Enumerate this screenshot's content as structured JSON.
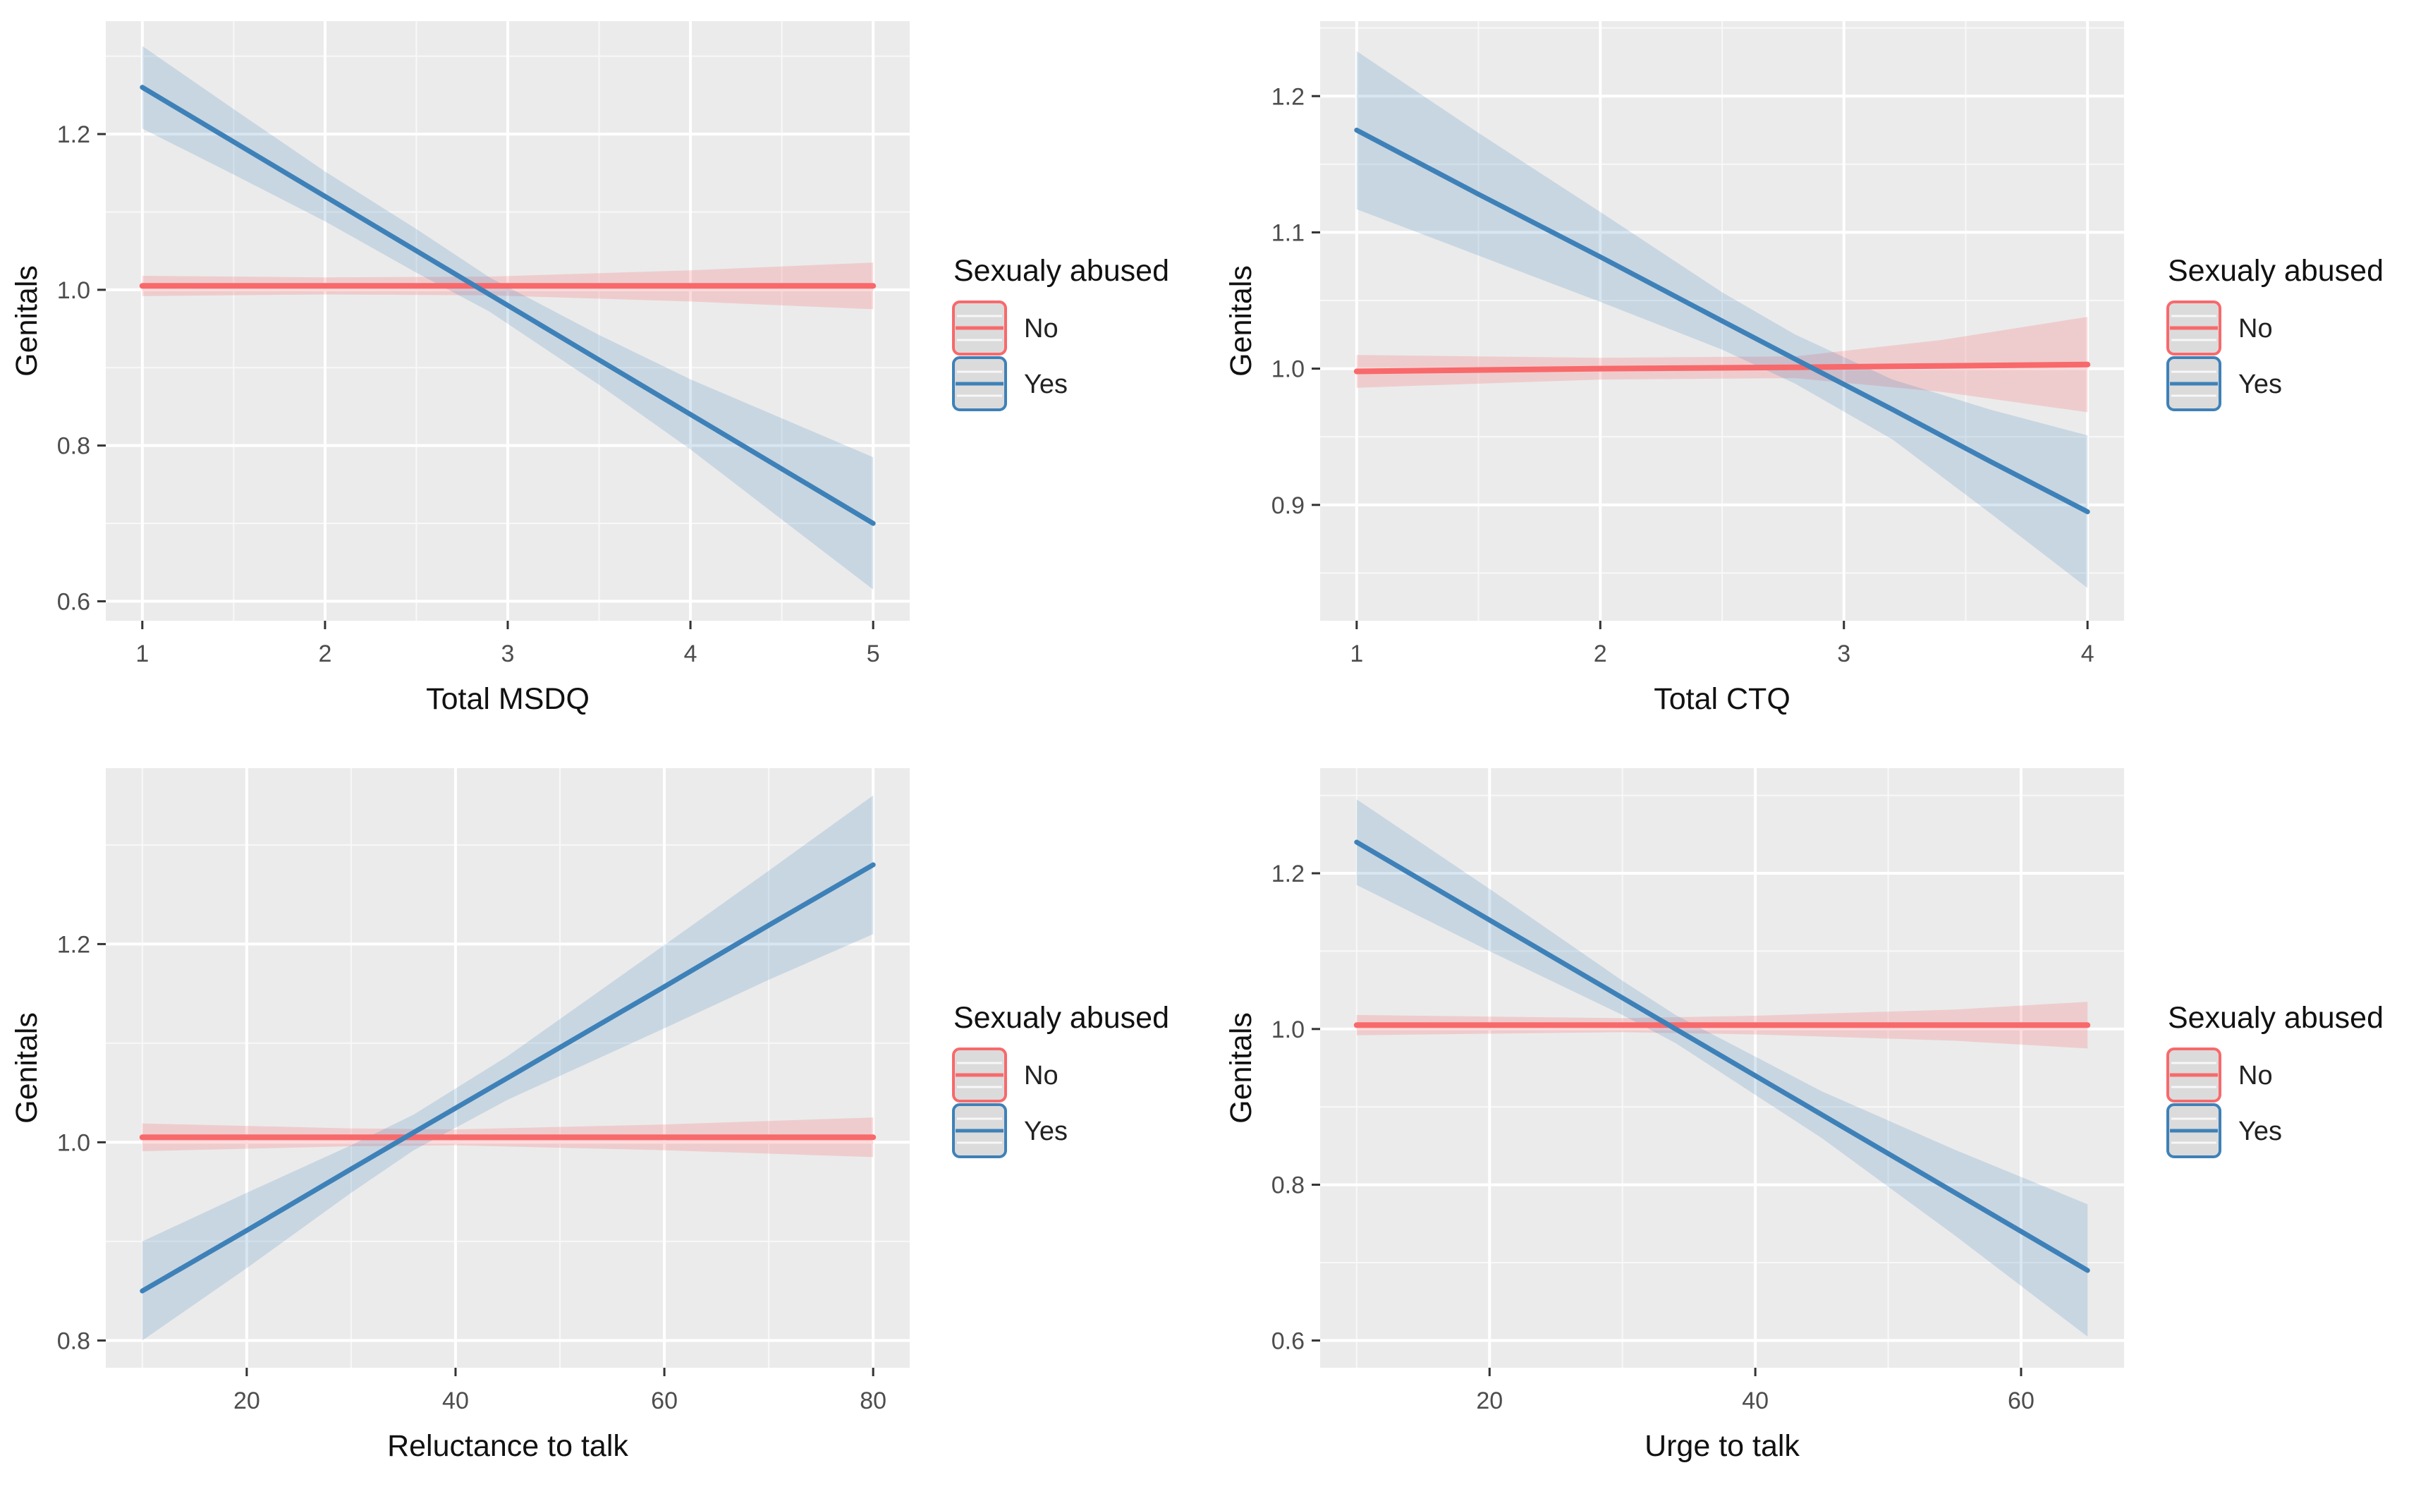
{
  "figure": {
    "background": "#ffffff",
    "description": "Four interaction-effect line plots of Genitals score vs questionnaire totals, split by sexual abuse status"
  },
  "style": {
    "panel_background": "#EBEBEB",
    "gridline_color": "#FFFFFF",
    "tick_mark_color": "#333333",
    "tick_text_color": "#4D4D4D",
    "axis_title_color": "#111111",
    "legend_title_color": "#111111",
    "legend_label_color": "#222222",
    "legend_key_fill": "#DBDBDB",
    "no_color": "#F8696B",
    "yes_color": "#3E81B8"
  },
  "legend": {
    "title": "Sexualy abused",
    "position": "right",
    "entries": [
      {
        "label": "No",
        "color": "#F8696B"
      },
      {
        "label": "Yes",
        "color": "#3E81B8"
      }
    ]
  },
  "chart_data": [
    {
      "type": "line",
      "title": "",
      "xlabel": "Total MSDQ",
      "ylabel": "Genitals",
      "xlim": [
        0.8,
        5.2
      ],
      "ylim": [
        0.575,
        1.345
      ],
      "grid": true,
      "x_ticks": {
        "major": [
          1,
          2,
          3,
          4,
          5
        ],
        "minor": [
          1.5,
          2.5,
          3.5,
          4.5
        ],
        "labels": [
          "1",
          "2",
          "3",
          "4",
          "5"
        ]
      },
      "y_ticks": {
        "major": [
          0.6,
          0.8,
          1.0,
          1.2
        ],
        "minor": [
          0.7,
          0.9,
          1.1,
          1.3
        ],
        "labels": [
          "0.6",
          "0.8",
          "1.0",
          "1.2"
        ]
      },
      "legend": {
        "title": "Sexualy abused",
        "position": "right",
        "entries": [
          "No",
          "Yes"
        ]
      },
      "series": [
        {
          "name": "No",
          "color": "#F8696B",
          "band_opacity": 0.24,
          "line_width": 8,
          "x": [
            1,
            2,
            2.9,
            4,
            5
          ],
          "y": [
            1.005,
            1.005,
            1.005,
            1.005,
            1.005
          ],
          "upper": [
            1.018,
            1.016,
            1.017,
            1.025,
            1.035
          ],
          "lower": [
            0.992,
            0.994,
            0.993,
            0.985,
            0.975
          ]
        },
        {
          "name": "Yes",
          "color": "#3E81B8",
          "band_opacity": 0.2,
          "line_width": 7,
          "x": [
            1,
            1.5,
            2,
            2.5,
            2.9,
            3.5,
            4,
            4.5,
            5
          ],
          "y": [
            1.26,
            1.19,
            1.12,
            1.05,
            0.994,
            0.91,
            0.84,
            0.77,
            0.7
          ],
          "upper": [
            1.313,
            1.232,
            1.152,
            1.078,
            1.016,
            0.942,
            0.885,
            0.835,
            0.785
          ],
          "lower": [
            1.207,
            1.148,
            1.088,
            1.022,
            0.972,
            0.878,
            0.795,
            0.705,
            0.615
          ]
        }
      ]
    },
    {
      "type": "line",
      "title": "",
      "xlabel": "Total CTQ",
      "ylabel": "Genitals",
      "xlim": [
        0.85,
        4.15
      ],
      "ylim": [
        0.815,
        1.255
      ],
      "grid": true,
      "x_ticks": {
        "major": [
          1,
          2,
          3,
          4
        ],
        "minor": [
          1.5,
          2.5,
          3.5
        ],
        "labels": [
          "1",
          "2",
          "3",
          "4"
        ]
      },
      "y_ticks": {
        "major": [
          0.9,
          1.0,
          1.1,
          1.2
        ],
        "minor": [
          0.85,
          0.95,
          1.05,
          1.15,
          1.25
        ],
        "labels": [
          "0.9",
          "1.0",
          "1.1",
          "1.2"
        ]
      },
      "legend": {
        "title": "Sexualy abused",
        "position": "right",
        "entries": [
          "No",
          "Yes"
        ]
      },
      "series": [
        {
          "name": "No",
          "color": "#F8696B",
          "band_opacity": 0.24,
          "line_width": 8,
          "x": [
            1,
            2,
            2.8,
            3.4,
            4
          ],
          "y": [
            0.998,
            1.0,
            1.001,
            1.002,
            1.003
          ],
          "upper": [
            1.01,
            1.008,
            1.009,
            1.021,
            1.038
          ],
          "lower": [
            0.986,
            0.992,
            0.993,
            0.983,
            0.968
          ]
        },
        {
          "name": "Yes",
          "color": "#3E81B8",
          "band_opacity": 0.2,
          "line_width": 7,
          "x": [
            1,
            1.5,
            2,
            2.5,
            2.8,
            3.2,
            3.6,
            4
          ],
          "y": [
            1.175,
            1.128,
            1.082,
            1.035,
            1.007,
            0.97,
            0.932,
            0.895
          ],
          "upper": [
            1.233,
            1.173,
            1.115,
            1.056,
            1.025,
            0.992,
            0.97,
            0.951
          ],
          "lower": [
            1.117,
            1.083,
            1.049,
            1.014,
            0.989,
            0.948,
            0.894,
            0.839
          ]
        }
      ]
    },
    {
      "type": "line",
      "title": "",
      "xlabel": "Reluctance to talk",
      "ylabel": "Genitals",
      "xlim": [
        6.5,
        83.5
      ],
      "ylim": [
        0.7725,
        1.3775
      ],
      "grid": true,
      "x_ticks": {
        "major": [
          20,
          40,
          60,
          80
        ],
        "minor": [
          10,
          30,
          50,
          70
        ],
        "labels": [
          "20",
          "40",
          "60",
          "80"
        ]
      },
      "y_ticks": {
        "major": [
          0.8,
          1.0,
          1.2
        ],
        "minor": [
          0.9,
          1.1,
          1.3
        ],
        "labels": [
          "0.8",
          "1.0",
          "1.2"
        ]
      },
      "legend": {
        "title": "Sexualy abused",
        "position": "right",
        "entries": [
          "No",
          "Yes"
        ]
      },
      "series": [
        {
          "name": "No",
          "color": "#F8696B",
          "band_opacity": 0.24,
          "line_width": 8,
          "x": [
            10,
            30,
            40,
            60,
            80
          ],
          "y": [
            1.005,
            1.005,
            1.005,
            1.005,
            1.005
          ],
          "upper": [
            1.019,
            1.014,
            1.013,
            1.018,
            1.025
          ],
          "lower": [
            0.991,
            0.996,
            0.997,
            0.992,
            0.985
          ]
        },
        {
          "name": "Yes",
          "color": "#3E81B8",
          "band_opacity": 0.2,
          "line_width": 7,
          "x": [
            10,
            20,
            30,
            36,
            45,
            60,
            70,
            80
          ],
          "y": [
            0.85,
            0.911,
            0.973,
            1.01,
            1.065,
            1.157,
            1.219,
            1.28
          ],
          "upper": [
            0.9,
            0.949,
            0.997,
            1.028,
            1.087,
            1.199,
            1.274,
            1.35
          ],
          "lower": [
            0.8,
            0.873,
            0.949,
            0.992,
            1.043,
            1.115,
            1.164,
            1.21
          ]
        }
      ]
    },
    {
      "type": "line",
      "title": "",
      "xlabel": "Urge to talk",
      "ylabel": "Genitals",
      "xlim": [
        7.25,
        67.75
      ],
      "ylim": [
        0.565,
        1.335
      ],
      "grid": true,
      "x_ticks": {
        "major": [
          20,
          40,
          60
        ],
        "minor": [
          10,
          30,
          50
        ],
        "labels": [
          "20",
          "40",
          "60"
        ]
      },
      "y_ticks": {
        "major": [
          0.6,
          0.8,
          1.0,
          1.2
        ],
        "minor": [
          0.7,
          0.9,
          1.1,
          1.3
        ],
        "labels": [
          "0.6",
          "0.8",
          "1.0",
          "1.2"
        ]
      },
      "legend": {
        "title": "Sexualy abused",
        "position": "right",
        "entries": [
          "No",
          "Yes"
        ]
      },
      "series": [
        {
          "name": "No",
          "color": "#F8696B",
          "band_opacity": 0.24,
          "line_width": 8,
          "x": [
            10,
            30,
            40,
            55,
            65
          ],
          "y": [
            1.005,
            1.005,
            1.005,
            1.005,
            1.005
          ],
          "upper": [
            1.018,
            1.014,
            1.017,
            1.025,
            1.035
          ],
          "lower": [
            0.992,
            0.996,
            0.993,
            0.985,
            0.975
          ]
        },
        {
          "name": "Yes",
          "color": "#3E81B8",
          "band_opacity": 0.2,
          "line_width": 7,
          "x": [
            10,
            20,
            30,
            34,
            45,
            55,
            65
          ],
          "y": [
            1.24,
            1.14,
            1.04,
            1.0,
            0.89,
            0.79,
            0.69
          ],
          "upper": [
            1.295,
            1.18,
            1.062,
            1.018,
            0.92,
            0.845,
            0.775
          ],
          "lower": [
            1.185,
            1.1,
            1.018,
            0.982,
            0.86,
            0.735,
            0.605
          ]
        }
      ]
    }
  ]
}
